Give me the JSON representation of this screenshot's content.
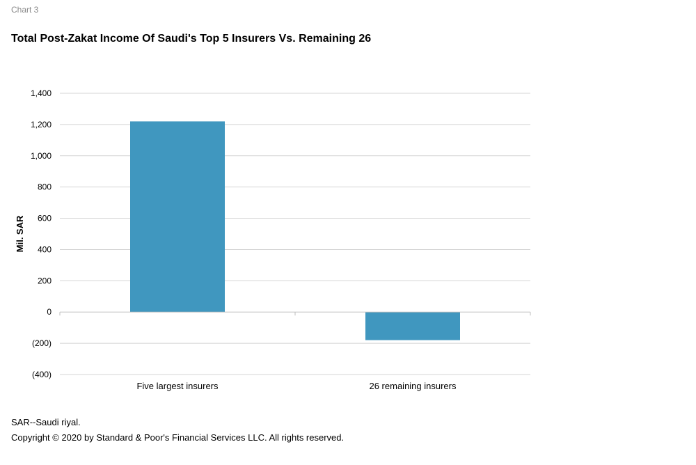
{
  "header": {
    "chart_label": "Chart 3"
  },
  "chart_data": {
    "type": "bar",
    "title": "Total Post-Zakat Income Of Saudi's Top 5 Insurers Vs. Remaining 26",
    "xlabel": "",
    "ylabel": "Mil. SAR",
    "categories": [
      "Five largest insurers",
      "26 remaining insurers"
    ],
    "values": [
      1220,
      -180
    ],
    "ylim": [
      -400,
      1400
    ],
    "yticks": [
      1400,
      1200,
      1000,
      800,
      600,
      400,
      200,
      0,
      -200,
      -400
    ],
    "ytick_labels": [
      "1,400",
      "1,200",
      "1,000",
      "800",
      "600",
      "400",
      "200",
      "0",
      "(200)",
      "(400)"
    ],
    "grid": true,
    "legend": "none",
    "bar_color": "#4097bf"
  },
  "footer": {
    "footnote": "SAR--Saudi riyal.",
    "copyright": "Copyright © 2020 by Standard & Poor's Financial Services LLC. All rights reserved."
  }
}
